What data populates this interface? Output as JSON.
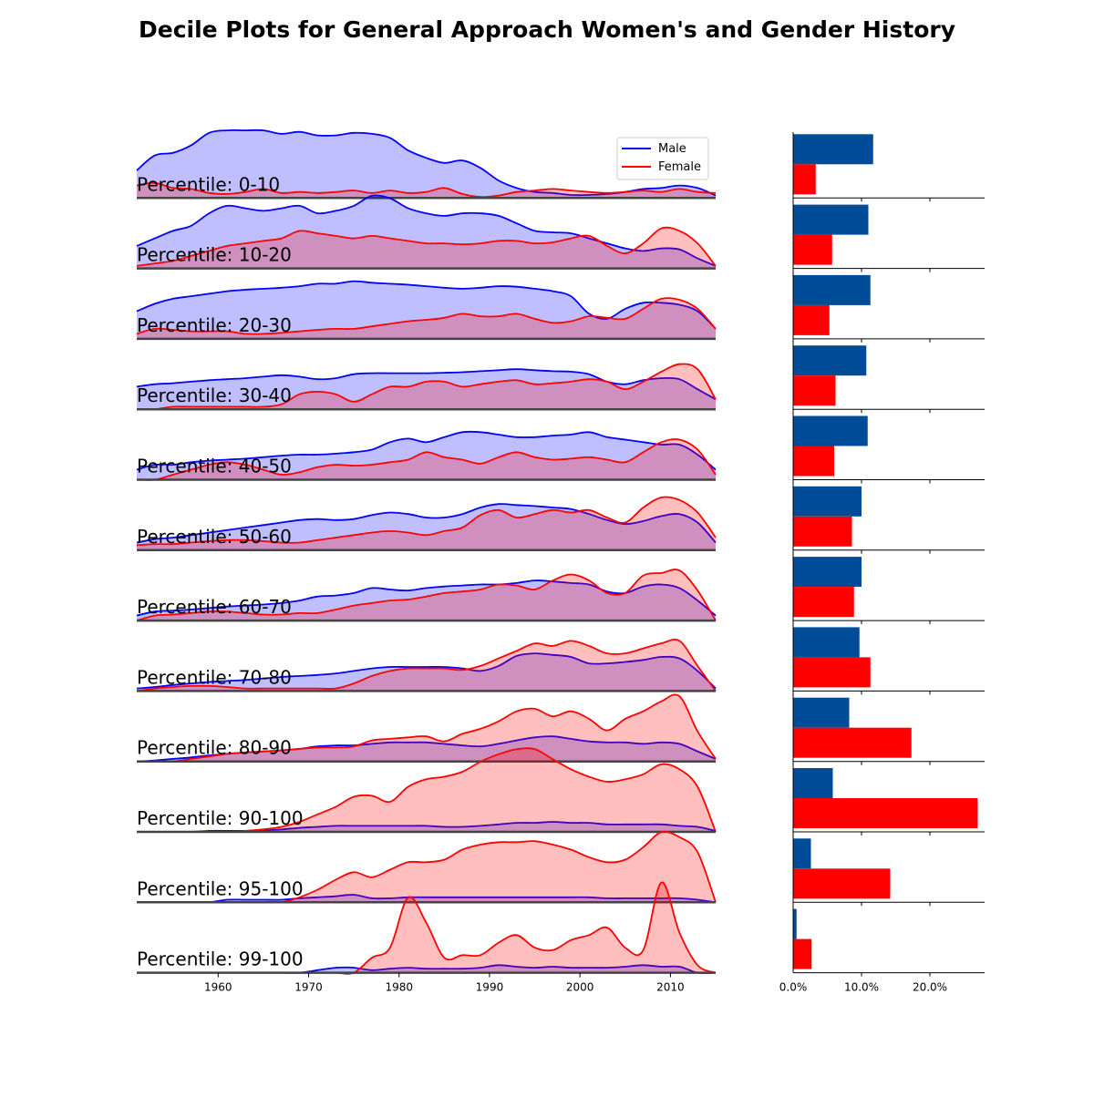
{
  "title": "Decile Plots for General Approach Women's and Gender History",
  "colors": {
    "male_line": "#0000ff",
    "female_line": "#ff0000",
    "male_fill": "#0000ff",
    "female_fill": "#ff0000",
    "male_bar": "#004c99",
    "female_bar": "#ff0000"
  },
  "chart_data": [
    {
      "type": "area",
      "description_of_plot": "ridgeline density plots, one row per percentile band",
      "x_ticks": [
        1960,
        1970,
        1980,
        1990,
        2000,
        2010
      ],
      "xlim": [
        1951,
        2015
      ],
      "legend": {
        "placement": "top-right of first row",
        "entries": [
          "Male",
          "Female"
        ]
      },
      "grid": false,
      "x_grid": [
        1951,
        1953,
        1955,
        1957,
        1959,
        1961,
        1963,
        1965,
        1967,
        1969,
        1971,
        1973,
        1975,
        1977,
        1979,
        1981,
        1983,
        1985,
        1987,
        1989,
        1991,
        1993,
        1995,
        1997,
        1999,
        2001,
        2003,
        2005,
        2007,
        2009,
        2011,
        2013,
        2015
      ],
      "rows": [
        {
          "label": "Percentile: 0-10",
          "male": [
            0.55,
            0.85,
            0.9,
            1.05,
            1.3,
            1.35,
            1.35,
            1.35,
            1.28,
            1.32,
            1.25,
            1.25,
            1.3,
            1.28,
            1.2,
            0.95,
            0.8,
            0.7,
            0.75,
            0.6,
            0.35,
            0.2,
            0.12,
            0.1,
            0.06,
            0.06,
            0.08,
            0.12,
            0.18,
            0.2,
            0.25,
            0.2,
            0.05
          ],
          "female": [
            0.25,
            0.3,
            0.2,
            0.18,
            0.1,
            0.08,
            0.12,
            0.18,
            0.1,
            0.12,
            0.1,
            0.12,
            0.15,
            0.1,
            0.15,
            0.1,
            0.12,
            0.2,
            0.08,
            0.02,
            0.05,
            0.12,
            0.15,
            0.18,
            0.15,
            0.12,
            0.1,
            0.12,
            0.15,
            0.12,
            0.18,
            0.12,
            0.1
          ]
        },
        {
          "label": "Percentile: 10-20",
          "male": [
            0.45,
            0.6,
            0.75,
            0.85,
            1.1,
            1.25,
            1.2,
            1.15,
            1.2,
            1.25,
            1.1,
            1.15,
            1.25,
            1.45,
            1.4,
            1.2,
            1.1,
            1.05,
            1.1,
            1.1,
            1.05,
            0.9,
            0.75,
            0.72,
            0.7,
            0.6,
            0.5,
            0.4,
            0.35,
            0.4,
            0.38,
            0.2,
            0.05
          ],
          "female": [
            0.05,
            0.1,
            0.15,
            0.25,
            0.35,
            0.45,
            0.5,
            0.55,
            0.6,
            0.75,
            0.7,
            0.65,
            0.6,
            0.65,
            0.6,
            0.55,
            0.5,
            0.5,
            0.48,
            0.5,
            0.55,
            0.55,
            0.5,
            0.52,
            0.6,
            0.65,
            0.45,
            0.3,
            0.5,
            0.8,
            0.75,
            0.5,
            0.05
          ]
        },
        {
          "label": "Percentile: 20-30",
          "male": [
            0.55,
            0.7,
            0.8,
            0.85,
            0.9,
            0.95,
            0.98,
            1.0,
            1.02,
            1.05,
            1.1,
            1.1,
            1.15,
            1.12,
            1.1,
            1.08,
            1.05,
            1.02,
            1.0,
            1.02,
            1.05,
            1.04,
            1.0,
            0.95,
            0.85,
            0.5,
            0.4,
            0.6,
            0.72,
            0.72,
            0.68,
            0.55,
            0.2
          ],
          "female": [
            0.1,
            0.2,
            0.18,
            0.15,
            0.15,
            0.15,
            0.1,
            0.1,
            0.12,
            0.15,
            0.18,
            0.2,
            0.2,
            0.25,
            0.3,
            0.35,
            0.38,
            0.42,
            0.5,
            0.45,
            0.45,
            0.5,
            0.4,
            0.32,
            0.35,
            0.45,
            0.42,
            0.4,
            0.6,
            0.8,
            0.78,
            0.6,
            0.2
          ]
        },
        {
          "label": "Percentile: 30-40",
          "male": [
            0.45,
            0.5,
            0.52,
            0.55,
            0.58,
            0.6,
            0.62,
            0.65,
            0.68,
            0.65,
            0.6,
            0.62,
            0.7,
            0.72,
            0.72,
            0.72,
            0.72,
            0.73,
            0.74,
            0.76,
            0.78,
            0.8,
            0.78,
            0.76,
            0.75,
            0.7,
            0.55,
            0.5,
            0.58,
            0.62,
            0.6,
            0.4,
            0.2
          ],
          "female": [
            0,
            0,
            0.05,
            0.05,
            0.05,
            0.05,
            0.05,
            0.05,
            0.1,
            0.3,
            0.35,
            0.3,
            0.15,
            0.3,
            0.45,
            0.45,
            0.55,
            0.55,
            0.45,
            0.5,
            0.55,
            0.58,
            0.5,
            0.52,
            0.55,
            0.6,
            0.55,
            0.4,
            0.55,
            0.75,
            0.9,
            0.8,
            0.2
          ]
        },
        {
          "label": "Percentile: 40-50",
          "male": [
            0.2,
            0.3,
            0.3,
            0.35,
            0.38,
            0.4,
            0.42,
            0.45,
            0.48,
            0.5,
            0.5,
            0.52,
            0.55,
            0.6,
            0.75,
            0.82,
            0.75,
            0.85,
            0.95,
            0.95,
            0.9,
            0.85,
            0.85,
            0.88,
            0.9,
            0.95,
            0.85,
            0.8,
            0.75,
            0.7,
            0.7,
            0.5,
            0.2
          ],
          "female": [
            0,
            0,
            0.1,
            0.2,
            0.3,
            0.35,
            0.3,
            0.2,
            0.1,
            0.15,
            0.25,
            0.3,
            0.28,
            0.3,
            0.35,
            0.4,
            0.55,
            0.45,
            0.4,
            0.32,
            0.45,
            0.55,
            0.45,
            0.4,
            0.42,
            0.45,
            0.4,
            0.35,
            0.55,
            0.75,
            0.8,
            0.6,
            0.1
          ]
        },
        {
          "label": "Percentile: 50-60",
          "male": [
            0.15,
            0.22,
            0.25,
            0.3,
            0.35,
            0.4,
            0.45,
            0.5,
            0.55,
            0.6,
            0.62,
            0.6,
            0.62,
            0.7,
            0.75,
            0.72,
            0.65,
            0.65,
            0.72,
            0.85,
            0.92,
            0.9,
            0.88,
            0.85,
            0.82,
            0.72,
            0.6,
            0.52,
            0.58,
            0.68,
            0.72,
            0.55,
            0.15
          ],
          "female": [
            0.1,
            0.12,
            0.12,
            0.15,
            0.18,
            0.2,
            0.2,
            0.18,
            0.15,
            0.15,
            0.2,
            0.25,
            0.3,
            0.35,
            0.38,
            0.35,
            0.3,
            0.38,
            0.45,
            0.7,
            0.8,
            0.65,
            0.72,
            0.8,
            0.75,
            0.8,
            0.65,
            0.55,
            0.85,
            1.05,
            1.0,
            0.75,
            0.25
          ]
        },
        {
          "label": "Percentile: 60-70",
          "male": [
            0.1,
            0.18,
            0.2,
            0.22,
            0.25,
            0.28,
            0.3,
            0.32,
            0.35,
            0.4,
            0.48,
            0.5,
            0.55,
            0.65,
            0.62,
            0.6,
            0.65,
            0.68,
            0.7,
            0.72,
            0.72,
            0.75,
            0.8,
            0.78,
            0.75,
            0.72,
            0.58,
            0.55,
            0.68,
            0.72,
            0.65,
            0.4,
            0.1
          ],
          "female": [
            0,
            0.1,
            0.12,
            0.15,
            0.18,
            0.18,
            0.15,
            0.12,
            0.12,
            0.15,
            0.15,
            0.22,
            0.3,
            0.35,
            0.4,
            0.42,
            0.48,
            0.55,
            0.58,
            0.62,
            0.72,
            0.7,
            0.62,
            0.8,
            0.92,
            0.8,
            0.55,
            0.55,
            0.9,
            0.95,
            1.0,
            0.6,
            0
          ]
        },
        {
          "label": "Percentile: 70-80",
          "male": [
            0.05,
            0.08,
            0.12,
            0.15,
            0.18,
            0.2,
            0.22,
            0.25,
            0.28,
            0.3,
            0.32,
            0.35,
            0.4,
            0.45,
            0.48,
            0.48,
            0.48,
            0.48,
            0.45,
            0.4,
            0.5,
            0.7,
            0.75,
            0.72,
            0.68,
            0.55,
            0.55,
            0.58,
            0.62,
            0.68,
            0.65,
            0.4,
            0.05
          ],
          "female": [
            0,
            0.05,
            0.08,
            0.1,
            0.1,
            0.08,
            0.05,
            0.05,
            0.05,
            0.05,
            0.05,
            0.05,
            0.15,
            0.3,
            0.4,
            0.45,
            0.45,
            0.45,
            0.42,
            0.5,
            0.65,
            0.8,
            0.95,
            0.9,
            1.0,
            0.9,
            0.75,
            0.75,
            0.85,
            0.95,
            1.0,
            0.5,
            0
          ]
        },
        {
          "label": "Percentile: 80-90",
          "male": [
            0,
            0.02,
            0.05,
            0.08,
            0.12,
            0.15,
            0.18,
            0.2,
            0.22,
            0.25,
            0.3,
            0.32,
            0.32,
            0.35,
            0.38,
            0.38,
            0.38,
            0.35,
            0.32,
            0.3,
            0.35,
            0.42,
            0.48,
            0.5,
            0.45,
            0.4,
            0.38,
            0.38,
            0.35,
            0.38,
            0.35,
            0.2,
            0.05
          ],
          "female": [
            0,
            0,
            0,
            0.05,
            0.1,
            0.15,
            0.18,
            0.2,
            0.22,
            0.25,
            0.28,
            0.28,
            0.3,
            0.42,
            0.45,
            0.48,
            0.5,
            0.4,
            0.55,
            0.65,
            0.8,
            1.0,
            1.05,
            0.9,
            1.0,
            0.85,
            0.62,
            0.85,
            1.0,
            1.2,
            1.3,
            0.6,
            0.05
          ]
        },
        {
          "label": "Percentile: 90-100",
          "male": [
            0,
            0,
            0,
            0,
            0.02,
            0.02,
            0.02,
            0.03,
            0.05,
            0.08,
            0.1,
            0.12,
            0.12,
            0.12,
            0.12,
            0.12,
            0.12,
            0.1,
            0.1,
            0.12,
            0.15,
            0.18,
            0.18,
            0.2,
            0.18,
            0.18,
            0.15,
            0.15,
            0.15,
            0.15,
            0.12,
            0.1,
            0.02
          ],
          "female": [
            0,
            0,
            0,
            0,
            0,
            0,
            0.02,
            0.05,
            0.1,
            0.2,
            0.35,
            0.5,
            0.7,
            0.72,
            0.6,
            0.9,
            1.05,
            1.1,
            1.2,
            1.4,
            1.55,
            1.65,
            1.65,
            1.45,
            1.25,
            1.1,
            1.0,
            1.05,
            1.15,
            1.35,
            1.25,
            0.9,
            0
          ]
        },
        {
          "label": "Percentile: 95-100",
          "male": [
            0,
            0,
            0,
            0,
            0,
            0.05,
            0.05,
            0.05,
            0.05,
            0.08,
            0.1,
            0.12,
            0.15,
            0.08,
            0.08,
            0.1,
            0.1,
            0.1,
            0.1,
            0.1,
            0.1,
            0.1,
            0.1,
            0.1,
            0.1,
            0.1,
            0.08,
            0.08,
            0.08,
            0.08,
            0.08,
            0.05,
            0
          ],
          "female": [
            0,
            0,
            0,
            0,
            0,
            0,
            0,
            0,
            0,
            0.1,
            0.25,
            0.45,
            0.6,
            0.5,
            0.65,
            0.8,
            0.8,
            0.85,
            1.05,
            1.15,
            1.2,
            1.2,
            1.22,
            1.15,
            1.05,
            0.9,
            0.8,
            0.85,
            1.1,
            1.4,
            1.3,
            1.0,
            0
          ]
        },
        {
          "label": "Percentile: 99-100",
          "male": [
            0,
            0,
            0,
            0,
            0,
            0,
            0,
            0,
            0,
            0,
            0.05,
            0.1,
            0.1,
            0.05,
            0.08,
            0.1,
            0.08,
            0.08,
            0.08,
            0.1,
            0.15,
            0.12,
            0.1,
            0.12,
            0.1,
            0.1,
            0.1,
            0.12,
            0.15,
            0.12,
            0.12,
            0,
            0
          ],
          "female": [
            0,
            0,
            0,
            0,
            0,
            0,
            0,
            0,
            0,
            0,
            0,
            0,
            0,
            0.3,
            0.5,
            1.5,
            1.0,
            0.3,
            0.35,
            0.35,
            0.6,
            0.75,
            0.5,
            0.45,
            0.65,
            0.75,
            0.9,
            0.5,
            0.45,
            1.8,
            0.8,
            0.15,
            0
          ]
        }
      ]
    },
    {
      "type": "bar",
      "orientation": "horizontal",
      "x_ticks": [
        "0.0%",
        "10.0%",
        "20.0%"
      ],
      "xlim": [
        0,
        0.28
      ],
      "categories": [
        "Percentile: 0-10",
        "Percentile: 10-20",
        "Percentile: 20-30",
        "Percentile: 30-40",
        "Percentile: 40-50",
        "Percentile: 50-60",
        "Percentile: 60-70",
        "Percentile: 70-80",
        "Percentile: 80-90",
        "Percentile: 90-100",
        "Percentile: 95-100",
        "Percentile: 99-100"
      ],
      "series": [
        {
          "name": "Male",
          "values": [
            0.117,
            0.11,
            0.113,
            0.107,
            0.109,
            0.1,
            0.1,
            0.097,
            0.082,
            0.058,
            0.026,
            0.005
          ]
        },
        {
          "name": "Female",
          "values": [
            0.033,
            0.057,
            0.053,
            0.062,
            0.06,
            0.086,
            0.089,
            0.113,
            0.173,
            0.27,
            0.142,
            0.027
          ]
        }
      ]
    }
  ]
}
